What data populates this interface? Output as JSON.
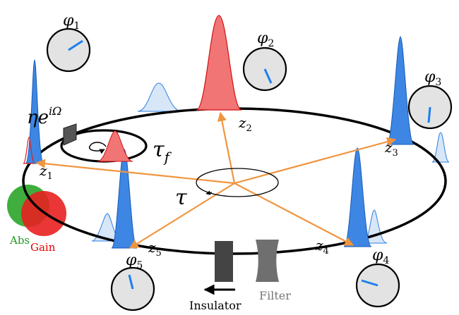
{
  "labels": {
    "z1": "z",
    "z1_sub": "1",
    "z2": "z",
    "z2_sub": "2",
    "z3": "z",
    "z3_sub": "3",
    "z4": "z",
    "z4_sub": "4",
    "z5": "z",
    "z5_sub": "5",
    "phi1": "φ",
    "phi1_sub": "1",
    "phi2": "φ",
    "phi2_sub": "2",
    "phi3": "φ",
    "phi3_sub": "3",
    "phi4": "φ",
    "phi4_sub": "4",
    "phi5": "φ",
    "phi5_sub": "5",
    "tau": "τ",
    "tau_f": "τ",
    "tau_f_sub": "f",
    "eta": "η",
    "eta_e": "e",
    "eta_sup": "iΩ",
    "abs": "Abs",
    "gain": "Gain",
    "insulator": "Insulator",
    "filter": "Filter"
  },
  "colors": {
    "pulse_blue": "#2f7fe0",
    "pulse_blue_light": "#cfe2f7",
    "pulse_red": "#f07070",
    "arrow_orange": "#f0953f",
    "clock_face": "#e3e3e3",
    "clock_hand": "#1a7ff0",
    "abs_green": "#1f9a1f",
    "gain_red": "#e02020"
  }
}
